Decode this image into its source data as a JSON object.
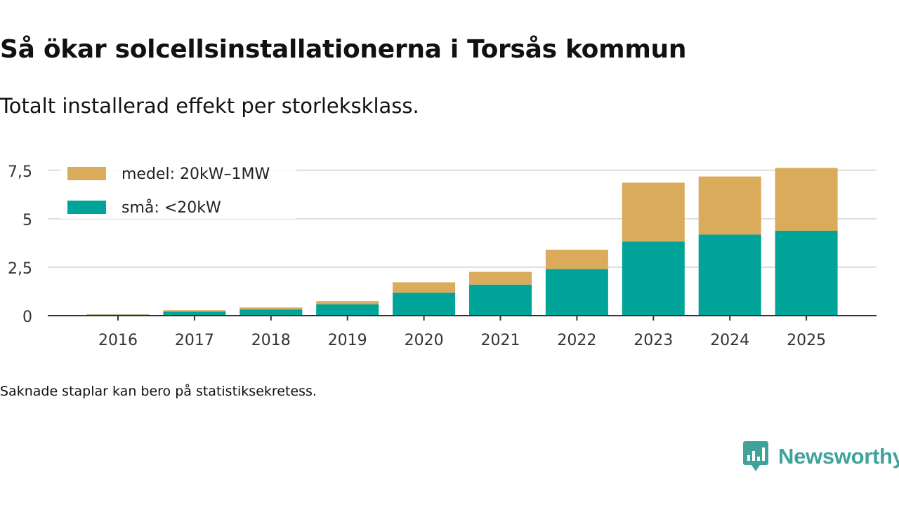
{
  "title": "Så ökar solcellsinstallationerna i Torsås kommun",
  "subtitle": "Totalt installerad effekt per storleksklass.",
  "footnote": "Saknade staplar kan bero på statistiksekretess.",
  "brand": {
    "name": "Newsworthy"
  },
  "colors": {
    "small": "#00a499",
    "medium": "#d9ab5a",
    "grid": "#dddddd",
    "axis": "#333333",
    "brand": "#3fa39b"
  },
  "chart_data": {
    "type": "bar",
    "stacked": true,
    "title": "Så ökar solcellsinstallationerna i Torsås kommun",
    "subtitle": "Totalt installerad effekt per storleksklass.",
    "categories": [
      "2016",
      "2017",
      "2018",
      "2019",
      "2020",
      "2021",
      "2022",
      "2023",
      "2024",
      "2025"
    ],
    "series": [
      {
        "name": "små: <20kW",
        "key": "small",
        "values": [
          0.05,
          0.2,
          0.32,
          0.58,
          1.18,
          1.6,
          2.4,
          3.82,
          4.18,
          4.38
        ]
      },
      {
        "name": "medel: 20kW–1MW",
        "key": "medium",
        "values": [
          0.02,
          0.08,
          0.1,
          0.17,
          0.54,
          0.66,
          1.0,
          3.04,
          3.0,
          3.24
        ]
      }
    ],
    "yticks": [
      {
        "value": 0,
        "label": "0"
      },
      {
        "value": 2.5,
        "label": "2,5"
      },
      {
        "value": 5,
        "label": "5"
      },
      {
        "value": 7.5,
        "label": "7,5"
      }
    ],
    "ylim": [
      0,
      7.6
    ],
    "xlabel": "",
    "ylabel": "",
    "grid": true,
    "legend": {
      "position": "top-left",
      "entries": [
        {
          "label": "medel: 20kW–1MW",
          "key": "medium"
        },
        {
          "label": "små: <20kW",
          "key": "small"
        }
      ]
    }
  }
}
